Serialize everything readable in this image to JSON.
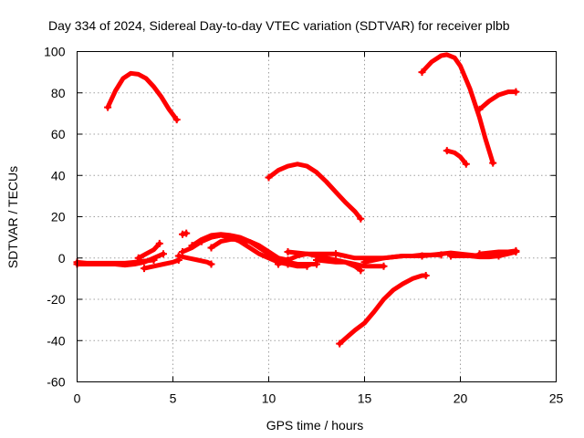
{
  "chart_data": {
    "type": "scatter",
    "title": "Day 334 of 2024, Sidereal Day-to-day VTEC variation (SDTVAR) for receiver plbb",
    "xlabel": "GPS time / hours",
    "ylabel": "SDTVAR / TECUs",
    "xlim": [
      0,
      25
    ],
    "ylim": [
      -60,
      100
    ],
    "x_ticks": [
      0,
      5,
      10,
      15,
      20,
      25
    ],
    "y_ticks": [
      -60,
      -40,
      -20,
      0,
      20,
      40,
      60,
      80,
      100
    ],
    "x_tick_labels": [
      "0",
      "5",
      "10",
      "15",
      "20",
      "25"
    ],
    "y_tick_labels": [
      "-60",
      "-40",
      "-20",
      "0",
      "20",
      "40",
      "60",
      "80",
      "100"
    ],
    "grid": true,
    "marker_color": "#ff0000",
    "series": [
      {
        "name": "arc-1",
        "x": [
          1.6,
          2.0,
          2.4,
          2.8,
          3.2,
          3.6,
          4.0,
          4.4,
          4.8,
          5.2
        ],
        "y": [
          73,
          81,
          87,
          89.5,
          89,
          87,
          83,
          78,
          72,
          67
        ]
      },
      {
        "name": "arc-2",
        "x": [
          10.0,
          10.5,
          11.0,
          11.5,
          12.0,
          12.5,
          13.0,
          13.5,
          14.0,
          14.5,
          14.8
        ],
        "y": [
          39,
          42.5,
          44.5,
          45.5,
          44.5,
          41.5,
          37,
          32,
          27,
          22.5,
          19
        ]
      },
      {
        "name": "arc-3",
        "x": [
          18.0,
          18.5,
          19.0,
          19.3,
          19.7,
          20.0,
          20.5,
          21.0,
          21.3,
          21.7
        ],
        "y": [
          90,
          95,
          98,
          98.5,
          97,
          93,
          82,
          68,
          58,
          46
        ]
      },
      {
        "name": "arc-4",
        "x": [
          19.3,
          19.7,
          20.0,
          20.3
        ],
        "y": [
          52,
          51,
          49,
          45.5
        ]
      },
      {
        "name": "arc-5",
        "x": [
          21.0,
          21.5,
          22.0,
          22.5,
          22.9
        ],
        "y": [
          72,
          76,
          79,
          80.5,
          80.5
        ]
      },
      {
        "name": "arc-6",
        "x": [
          13.7,
          14.0,
          14.5,
          15.0,
          15.5,
          16.0,
          16.5,
          17.0,
          17.5,
          18.0,
          18.2
        ],
        "y": [
          -41.5,
          -39,
          -35,
          -31.5,
          -26,
          -20,
          -15.5,
          -12.5,
          -10,
          -8.5,
          -8.5
        ]
      },
      {
        "name": "baseline-1",
        "x": [
          0.0,
          0.5,
          1.0,
          1.5,
          2.0,
          2.5,
          3.0,
          3.5,
          4.0
        ],
        "y": [
          -2,
          -2.5,
          -2.5,
          -2.5,
          -2.5,
          -2.5,
          -2,
          -1.5,
          -1
        ]
      },
      {
        "name": "baseline-2",
        "x": [
          0.0,
          1.0,
          2.0,
          2.5,
          3.0,
          3.5,
          4.0,
          4.5
        ],
        "y": [
          -3,
          -3,
          -3,
          -3.5,
          -3,
          -2,
          0,
          2
        ]
      },
      {
        "name": "baseline-3",
        "x": [
          3.5,
          4.0,
          4.5,
          5.0,
          5.3
        ],
        "y": [
          -5,
          -4,
          -3,
          -2,
          -1
        ]
      },
      {
        "name": "rise-1",
        "x": [
          3.2,
          3.6,
          4.0,
          4.3
        ],
        "y": [
          0,
          2,
          4,
          7
        ]
      },
      {
        "name": "low-1",
        "x": [
          5.3,
          5.8,
          6.3,
          6.8,
          7.0
        ],
        "y": [
          1,
          0,
          -1,
          -2,
          -3
        ]
      },
      {
        "name": "dot-1",
        "x": [
          5.5,
          5.7
        ],
        "y": [
          11.5,
          12
        ]
      },
      {
        "name": "hump-1",
        "x": [
          5.5,
          6.0,
          6.5,
          7.0,
          7.5,
          8.0,
          8.5,
          9.0,
          9.5,
          10.0,
          10.5,
          11.0
        ],
        "y": [
          3,
          5,
          8,
          10,
          11,
          10,
          8,
          5,
          2,
          0,
          -2,
          -3
        ]
      },
      {
        "name": "hump-2",
        "x": [
          6.0,
          6.5,
          7.0,
          7.5,
          8.0,
          8.5,
          9.0,
          9.5,
          10.0,
          10.5,
          11.0,
          11.5,
          12.0
        ],
        "y": [
          6,
          9,
          11,
          11.5,
          11,
          10,
          8,
          5,
          2,
          -1,
          -3,
          -4,
          -4
        ]
      },
      {
        "name": "hump-3",
        "x": [
          6.5,
          7.0,
          7.5,
          8.0,
          8.5,
          9.0,
          9.5,
          10.0,
          10.5,
          11.0,
          11.5,
          12.0,
          12.5
        ],
        "y": [
          8,
          10,
          11,
          10,
          9,
          8,
          6,
          3,
          0,
          -2,
          -3,
          -3,
          -3
        ]
      },
      {
        "name": "hump-4",
        "x": [
          7.0,
          7.5,
          8.0,
          8.5,
          9.0,
          9.5,
          10.0,
          10.5,
          11.0
        ],
        "y": [
          5,
          8,
          9,
          9,
          8,
          6,
          3,
          0,
          -1
        ]
      },
      {
        "name": "mid-1",
        "x": [
          10.5,
          11.0,
          11.5,
          12.0,
          12.5,
          13.0,
          13.5
        ],
        "y": [
          -3,
          -1,
          1,
          2,
          2,
          2,
          2
        ]
      },
      {
        "name": "mid-2",
        "x": [
          11.0,
          11.5,
          12.0,
          12.5,
          13.0,
          13.5,
          14.0,
          14.5,
          14.8
        ],
        "y": [
          3,
          2.5,
          2,
          1,
          0,
          -1,
          -2,
          -4,
          -6
        ]
      },
      {
        "name": "mid-3",
        "x": [
          12.5,
          13.0,
          13.5,
          14.0,
          14.5,
          15.0,
          15.5,
          16.0
        ],
        "y": [
          -1,
          -1.5,
          -2,
          -2,
          -3,
          -4,
          -4,
          -4
        ]
      },
      {
        "name": "mid-4",
        "x": [
          13.5,
          14.0,
          14.5,
          15.0,
          15.5,
          16.0,
          16.5,
          17.0,
          17.5,
          18.0
        ],
        "y": [
          2,
          1,
          0,
          0,
          0,
          0,
          0.5,
          1,
          1,
          1
        ]
      },
      {
        "name": "mid-5",
        "x": [
          15.0,
          15.5,
          16.0,
          16.5,
          17.0,
          17.5,
          18.0,
          18.5,
          19.0
        ],
        "y": [
          -2,
          -1,
          0,
          0.5,
          1,
          1,
          1.5,
          1.5,
          1.5
        ]
      },
      {
        "name": "late-1",
        "x": [
          18.0,
          18.5,
          19.0,
          19.5,
          20.0,
          20.5,
          21.0,
          21.5,
          22.0
        ],
        "y": [
          1,
          1.5,
          2,
          2.5,
          2,
          1.5,
          1,
          1,
          1
        ]
      },
      {
        "name": "late-2",
        "x": [
          19.5,
          20.0,
          20.5,
          21.0,
          21.5,
          22.0,
          22.5,
          22.9
        ],
        "y": [
          1,
          1,
          1,
          0.5,
          0.5,
          1,
          2,
          3
        ]
      },
      {
        "name": "late-3",
        "x": [
          21.0,
          21.5,
          22.0,
          22.5,
          22.9
        ],
        "y": [
          2,
          2.5,
          3,
          3,
          3.5
        ]
      }
    ]
  }
}
